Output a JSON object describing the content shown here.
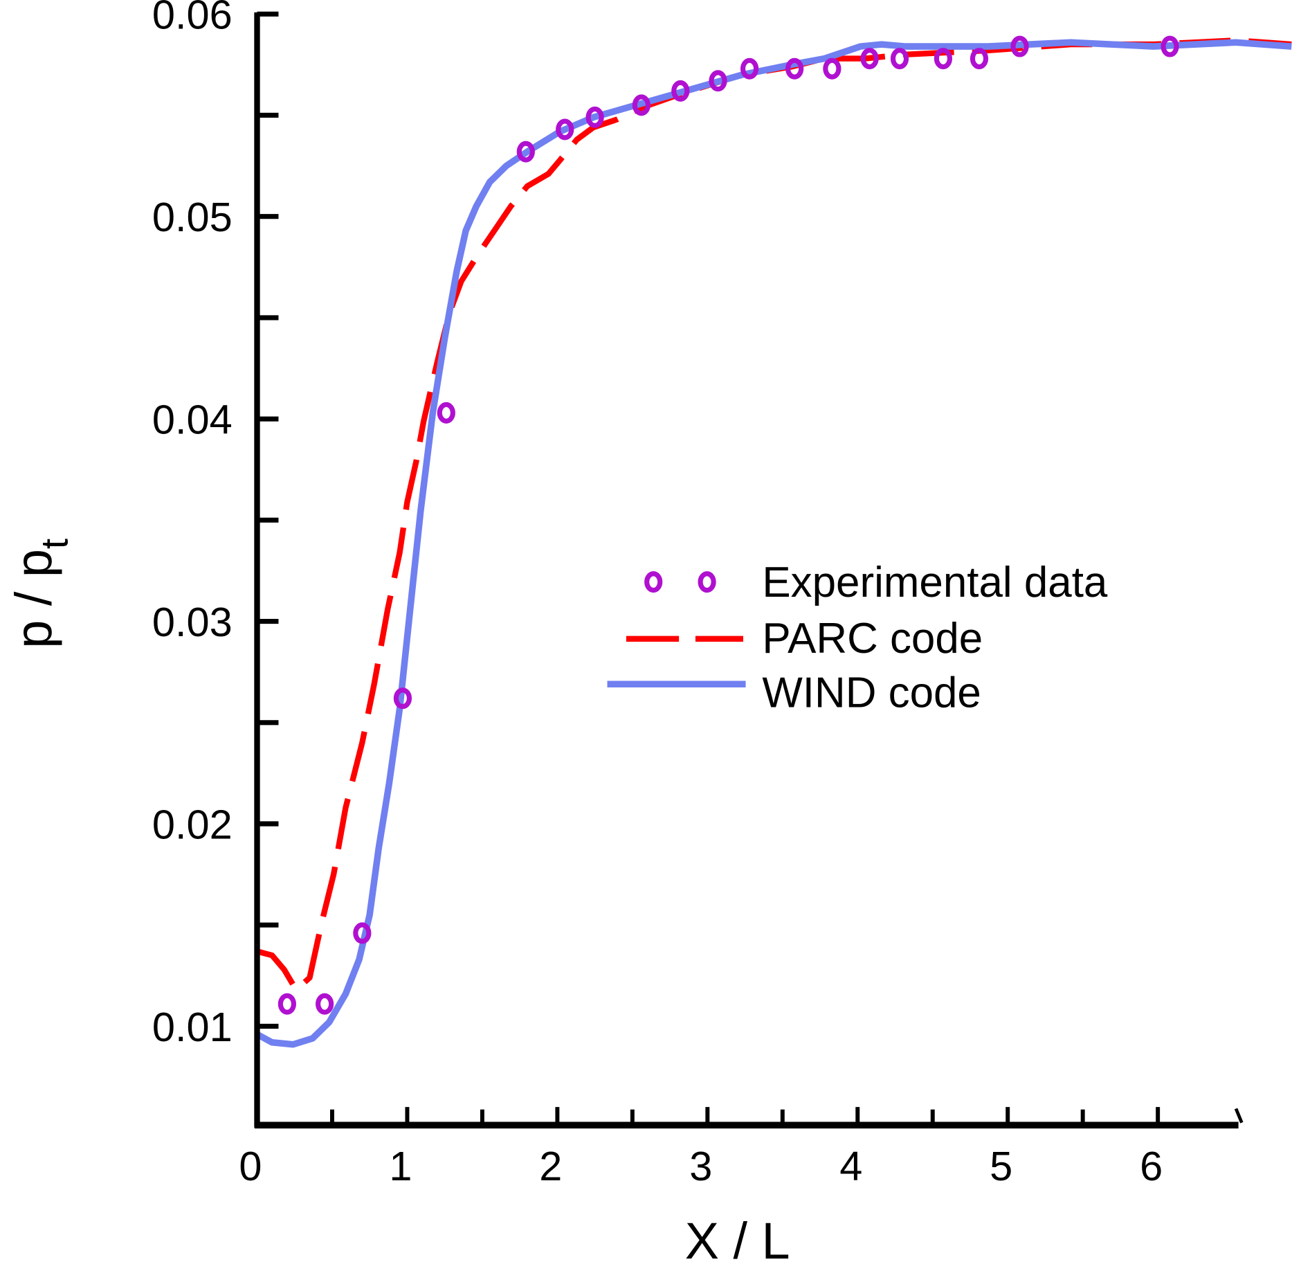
{
  "chart_data": {
    "type": "line",
    "title": "",
    "xlabel": "X / L",
    "ylabel_main": "p / p",
    "ylabel_sub": "t",
    "xlim": [
      0,
      6.89
    ],
    "ylim": [
      0.0051,
      0.06
    ],
    "x_ticks": [
      "0",
      "1",
      "2",
      "3",
      "4",
      "5",
      "6"
    ],
    "x_tick_values": [
      0,
      1,
      2,
      3,
      4,
      5,
      6
    ],
    "y_ticks": [
      "0.01",
      "0.02",
      "0.03",
      "0.04",
      "0.05",
      "0.06"
    ],
    "y_tick_values": [
      0.01,
      0.02,
      0.03,
      0.04,
      0.05,
      0.06
    ],
    "grid": false,
    "legend_position": "center-right",
    "series": [
      {
        "name": "Experimental data",
        "style": "markers",
        "color": "#b010d0",
        "x": [
          0.2,
          0.45,
          0.7,
          0.97,
          1.26,
          1.79,
          2.05,
          2.25,
          2.56,
          2.82,
          3.07,
          3.28,
          3.58,
          3.83,
          4.08,
          4.28,
          4.57,
          4.81,
          5.08,
          6.08
        ],
        "y": [
          0.0111,
          0.0111,
          0.0146,
          0.0262,
          0.0403,
          0.0532,
          0.0543,
          0.0549,
          0.0555,
          0.0562,
          0.0567,
          0.0573,
          0.0573,
          0.0573,
          0.0578,
          0.0578,
          0.0578,
          0.0578,
          0.0584,
          0.0584
        ]
      },
      {
        "name": "PARC code",
        "style": "dashed",
        "color": "#ff0000",
        "x": [
          0,
          0.1,
          0.18,
          0.26,
          0.35,
          0.43,
          0.51,
          0.59,
          0.7,
          0.78,
          0.87,
          0.95,
          1.0,
          1.06,
          1.11,
          1.2,
          1.28,
          1.36,
          1.47,
          1.58,
          1.69,
          1.8,
          1.94,
          2.02,
          2.13,
          2.24,
          2.4,
          2.57,
          2.84,
          3.23,
          3.56,
          3.78,
          4.05,
          4.32,
          4.87,
          5.42,
          5.97,
          6.52,
          6.89
        ],
        "y": [
          0.0137,
          0.0135,
          0.0128,
          0.0118,
          0.0124,
          0.0151,
          0.0175,
          0.0208,
          0.024,
          0.0269,
          0.0306,
          0.0334,
          0.0359,
          0.0379,
          0.0399,
          0.0428,
          0.0452,
          0.0468,
          0.0481,
          0.0493,
          0.0505,
          0.0515,
          0.0521,
          0.0528,
          0.0538,
          0.0544,
          0.0548,
          0.0554,
          0.0561,
          0.057,
          0.0574,
          0.0578,
          0.0578,
          0.058,
          0.0582,
          0.0585,
          0.0585,
          0.0587,
          0.0585
        ]
      },
      {
        "name": "WIND code",
        "style": "solid",
        "color": "#7080f0",
        "x": [
          0,
          0.1,
          0.24,
          0.37,
          0.48,
          0.59,
          0.68,
          0.75,
          0.81,
          0.88,
          0.95,
          1.02,
          1.09,
          1.17,
          1.25,
          1.33,
          1.39,
          1.46,
          1.55,
          1.66,
          1.8,
          2.02,
          2.24,
          2.57,
          2.9,
          3.23,
          3.56,
          3.78,
          4.02,
          4.16,
          4.32,
          4.87,
          5.42,
          5.97,
          6.52,
          6.89
        ],
        "y": [
          0.0096,
          0.0092,
          0.0091,
          0.0094,
          0.0102,
          0.0116,
          0.0133,
          0.0155,
          0.0188,
          0.022,
          0.0257,
          0.0306,
          0.0355,
          0.0403,
          0.044,
          0.0473,
          0.0493,
          0.0505,
          0.0517,
          0.0525,
          0.0532,
          0.0542,
          0.0549,
          0.0556,
          0.0563,
          0.057,
          0.0575,
          0.0578,
          0.0584,
          0.0585,
          0.0584,
          0.0584,
          0.0586,
          0.0584,
          0.0586,
          0.0584
        ]
      }
    ]
  }
}
